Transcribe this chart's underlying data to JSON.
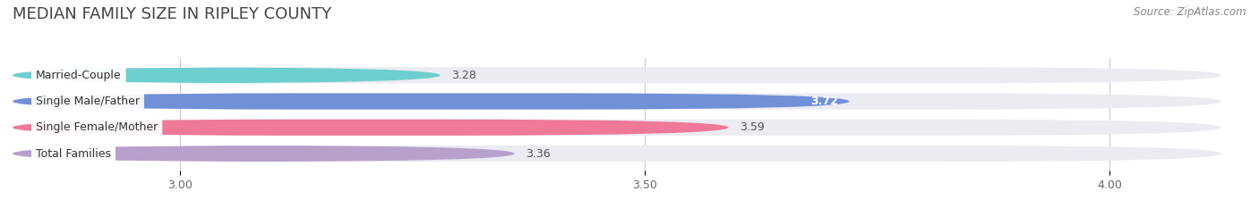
{
  "title": "MEDIAN FAMILY SIZE IN RIPLEY COUNTY",
  "source": "Source: ZipAtlas.com",
  "categories": [
    "Married-Couple",
    "Single Male/Father",
    "Single Female/Mother",
    "Total Families"
  ],
  "values": [
    3.28,
    3.72,
    3.59,
    3.36
  ],
  "bar_colors": [
    "#6dcfcf",
    "#7090d8",
    "#f07898",
    "#b8a0cc"
  ],
  "bar_label_colors": [
    "#444444",
    "#ffffff",
    "#444444",
    "#444444"
  ],
  "xlim_left": 2.82,
  "xlim_right": 4.12,
  "xticks": [
    3.0,
    3.5,
    4.0
  ],
  "xtick_labels": [
    "3.00",
    "3.50",
    "4.00"
  ],
  "background_color": "#ffffff",
  "bar_bg_color": "#ebebf2",
  "title_fontsize": 13,
  "label_fontsize": 9,
  "value_fontsize": 9,
  "tick_fontsize": 9,
  "source_fontsize": 8.5
}
